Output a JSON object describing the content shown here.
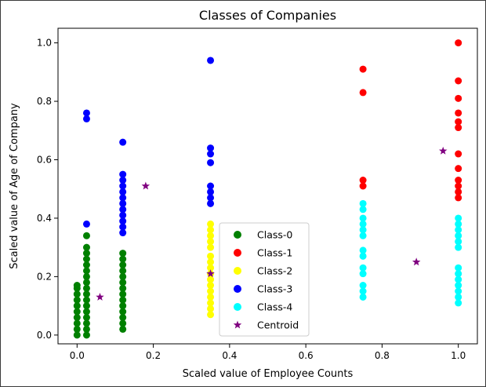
{
  "chart_data": {
    "type": "scatter",
    "title": "Classes of Companies",
    "xlabel": "Scaled value of Employee Counts",
    "ylabel": "Scaled value of Age of Company",
    "xlim": [
      -0.05,
      1.05
    ],
    "ylim": [
      -0.03,
      1.05
    ],
    "xticks": [
      "0.0",
      "0.2",
      "0.4",
      "0.6",
      "0.8",
      "1.0"
    ],
    "yticks": [
      "0.0",
      "0.2",
      "0.4",
      "0.6",
      "0.8",
      "1.0"
    ],
    "grid": false,
    "legend_position": "lower-center",
    "series": [
      {
        "name": "Class-0",
        "color": "#008000",
        "marker": "circle",
        "points": [
          [
            0.0,
            0.0
          ],
          [
            0.0,
            0.02
          ],
          [
            0.0,
            0.04
          ],
          [
            0.0,
            0.06
          ],
          [
            0.0,
            0.08
          ],
          [
            0.0,
            0.1
          ],
          [
            0.0,
            0.12
          ],
          [
            0.0,
            0.14
          ],
          [
            0.0,
            0.16
          ],
          [
            0.0,
            0.17
          ],
          [
            0.025,
            0.0
          ],
          [
            0.025,
            0.02
          ],
          [
            0.025,
            0.04
          ],
          [
            0.025,
            0.06
          ],
          [
            0.025,
            0.08
          ],
          [
            0.025,
            0.1
          ],
          [
            0.025,
            0.12
          ],
          [
            0.025,
            0.14
          ],
          [
            0.025,
            0.16
          ],
          [
            0.025,
            0.18
          ],
          [
            0.025,
            0.2
          ],
          [
            0.025,
            0.22
          ],
          [
            0.025,
            0.24
          ],
          [
            0.025,
            0.26
          ],
          [
            0.025,
            0.28
          ],
          [
            0.025,
            0.3
          ],
          [
            0.025,
            0.34
          ],
          [
            0.12,
            0.02
          ],
          [
            0.12,
            0.04
          ],
          [
            0.12,
            0.06
          ],
          [
            0.12,
            0.08
          ],
          [
            0.12,
            0.1
          ],
          [
            0.12,
            0.12
          ],
          [
            0.12,
            0.14
          ],
          [
            0.12,
            0.16
          ],
          [
            0.12,
            0.18
          ],
          [
            0.12,
            0.2
          ],
          [
            0.12,
            0.22
          ],
          [
            0.12,
            0.24
          ],
          [
            0.12,
            0.26
          ],
          [
            0.12,
            0.28
          ]
        ]
      },
      {
        "name": "Class-1",
        "color": "#ff0000",
        "marker": "circle",
        "points": [
          [
            0.75,
            0.91
          ],
          [
            0.75,
            0.83
          ],
          [
            0.75,
            0.53
          ],
          [
            0.75,
            0.51
          ],
          [
            1.0,
            1.0
          ],
          [
            1.0,
            0.87
          ],
          [
            1.0,
            0.81
          ],
          [
            1.0,
            0.76
          ],
          [
            1.0,
            0.73
          ],
          [
            1.0,
            0.71
          ],
          [
            1.0,
            0.62
          ],
          [
            1.0,
            0.57
          ],
          [
            1.0,
            0.53
          ],
          [
            1.0,
            0.51
          ],
          [
            1.0,
            0.49
          ],
          [
            1.0,
            0.47
          ]
        ]
      },
      {
        "name": "Class-2",
        "color": "#ffff00",
        "marker": "circle",
        "points": [
          [
            0.35,
            0.07
          ],
          [
            0.35,
            0.09
          ],
          [
            0.35,
            0.11
          ],
          [
            0.35,
            0.13
          ],
          [
            0.35,
            0.15
          ],
          [
            0.35,
            0.17
          ],
          [
            0.35,
            0.19
          ],
          [
            0.35,
            0.21
          ],
          [
            0.35,
            0.23
          ],
          [
            0.35,
            0.25
          ],
          [
            0.35,
            0.27
          ],
          [
            0.35,
            0.3
          ],
          [
            0.35,
            0.32
          ],
          [
            0.35,
            0.34
          ],
          [
            0.35,
            0.36
          ],
          [
            0.35,
            0.38
          ]
        ]
      },
      {
        "name": "Class-3",
        "color": "#0000ff",
        "marker": "circle",
        "points": [
          [
            0.025,
            0.76
          ],
          [
            0.025,
            0.74
          ],
          [
            0.025,
            0.38
          ],
          [
            0.12,
            0.66
          ],
          [
            0.12,
            0.55
          ],
          [
            0.12,
            0.53
          ],
          [
            0.12,
            0.51
          ],
          [
            0.12,
            0.49
          ],
          [
            0.12,
            0.47
          ],
          [
            0.12,
            0.45
          ],
          [
            0.12,
            0.43
          ],
          [
            0.12,
            0.41
          ],
          [
            0.12,
            0.39
          ],
          [
            0.12,
            0.37
          ],
          [
            0.12,
            0.35
          ],
          [
            0.35,
            0.94
          ],
          [
            0.35,
            0.64
          ],
          [
            0.35,
            0.62
          ],
          [
            0.35,
            0.59
          ],
          [
            0.35,
            0.51
          ],
          [
            0.35,
            0.49
          ],
          [
            0.35,
            0.47
          ],
          [
            0.35,
            0.45
          ]
        ]
      },
      {
        "name": "Class-4",
        "color": "#00ffff",
        "marker": "circle",
        "points": [
          [
            0.75,
            0.13
          ],
          [
            0.75,
            0.15
          ],
          [
            0.75,
            0.17
          ],
          [
            0.75,
            0.21
          ],
          [
            0.75,
            0.23
          ],
          [
            0.75,
            0.27
          ],
          [
            0.75,
            0.29
          ],
          [
            0.75,
            0.34
          ],
          [
            0.75,
            0.36
          ],
          [
            0.75,
            0.38
          ],
          [
            0.75,
            0.4
          ],
          [
            0.75,
            0.43
          ],
          [
            0.75,
            0.45
          ],
          [
            1.0,
            0.11
          ],
          [
            1.0,
            0.13
          ],
          [
            1.0,
            0.15
          ],
          [
            1.0,
            0.17
          ],
          [
            1.0,
            0.19
          ],
          [
            1.0,
            0.21
          ],
          [
            1.0,
            0.23
          ],
          [
            1.0,
            0.3
          ],
          [
            1.0,
            0.32
          ],
          [
            1.0,
            0.34
          ],
          [
            1.0,
            0.36
          ],
          [
            1.0,
            0.38
          ],
          [
            1.0,
            0.4
          ]
        ]
      },
      {
        "name": "Centroid",
        "color": "#800080",
        "marker": "star",
        "points": [
          [
            0.06,
            0.13
          ],
          [
            0.18,
            0.51
          ],
          [
            0.35,
            0.21
          ],
          [
            0.89,
            0.25
          ],
          [
            0.96,
            0.63
          ]
        ]
      }
    ]
  }
}
